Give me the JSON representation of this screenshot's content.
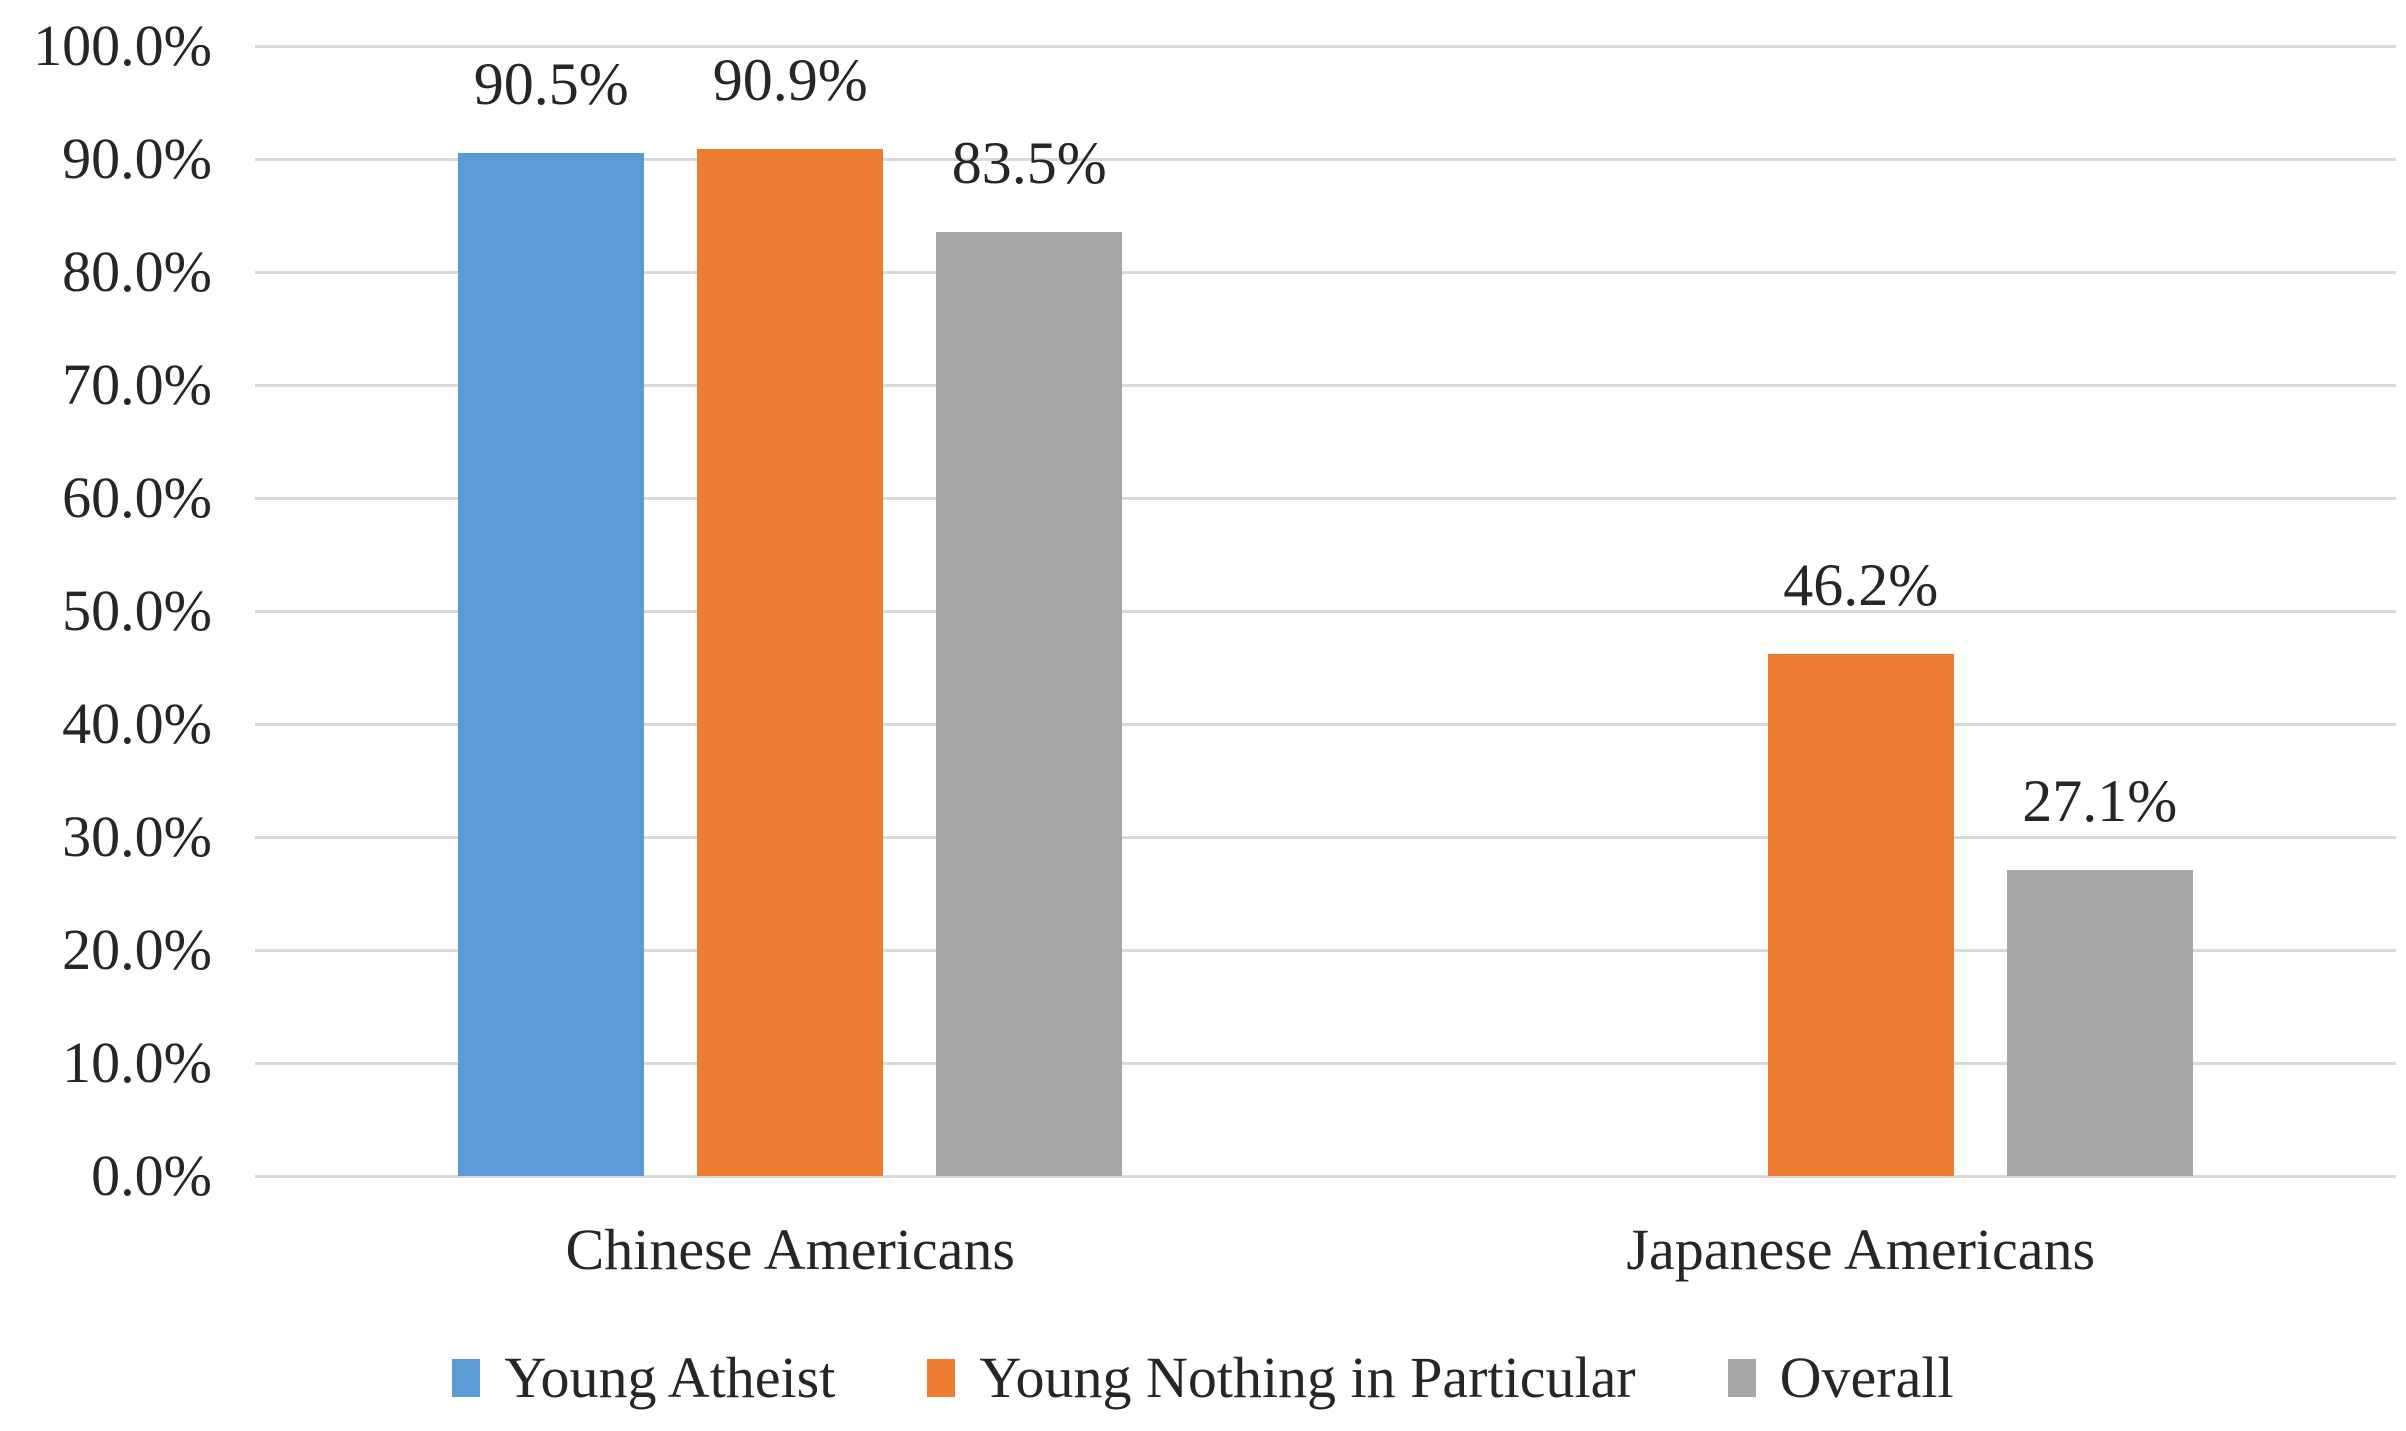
{
  "chart_data": {
    "type": "bar",
    "title": "",
    "categories": [
      "Chinese Americans",
      "Japanese Americans"
    ],
    "series": [
      {
        "name": "Young Atheist",
        "color": "#5B9BD5",
        "values": [
          90.5,
          null
        ],
        "value_labels": [
          "90.5%",
          null
        ]
      },
      {
        "name": "Young Nothing in Particular",
        "color": "#ED7D31",
        "values": [
          90.9,
          46.2
        ],
        "value_labels": [
          "90.9%",
          "46.2%"
        ]
      },
      {
        "name": "Overall",
        "color": "#A6A6A6",
        "values": [
          83.5,
          27.1
        ],
        "value_labels": [
          "83.5%",
          "27.1%"
        ]
      }
    ],
    "y_axis": {
      "min": 0,
      "max": 100,
      "step": 10,
      "unit": "%",
      "tick_labels": [
        "0.0%",
        "10.0%",
        "20.0%",
        "30.0%",
        "40.0%",
        "50.0%",
        "60.0%",
        "70.0%",
        "80.0%",
        "90.0%",
        "100.0%"
      ]
    },
    "grid": "horizontal",
    "gridline_color": "#D9D9D9",
    "text_color": "#262626",
    "legend_position": "bottom",
    "background_color": "#FFFFFF"
  }
}
